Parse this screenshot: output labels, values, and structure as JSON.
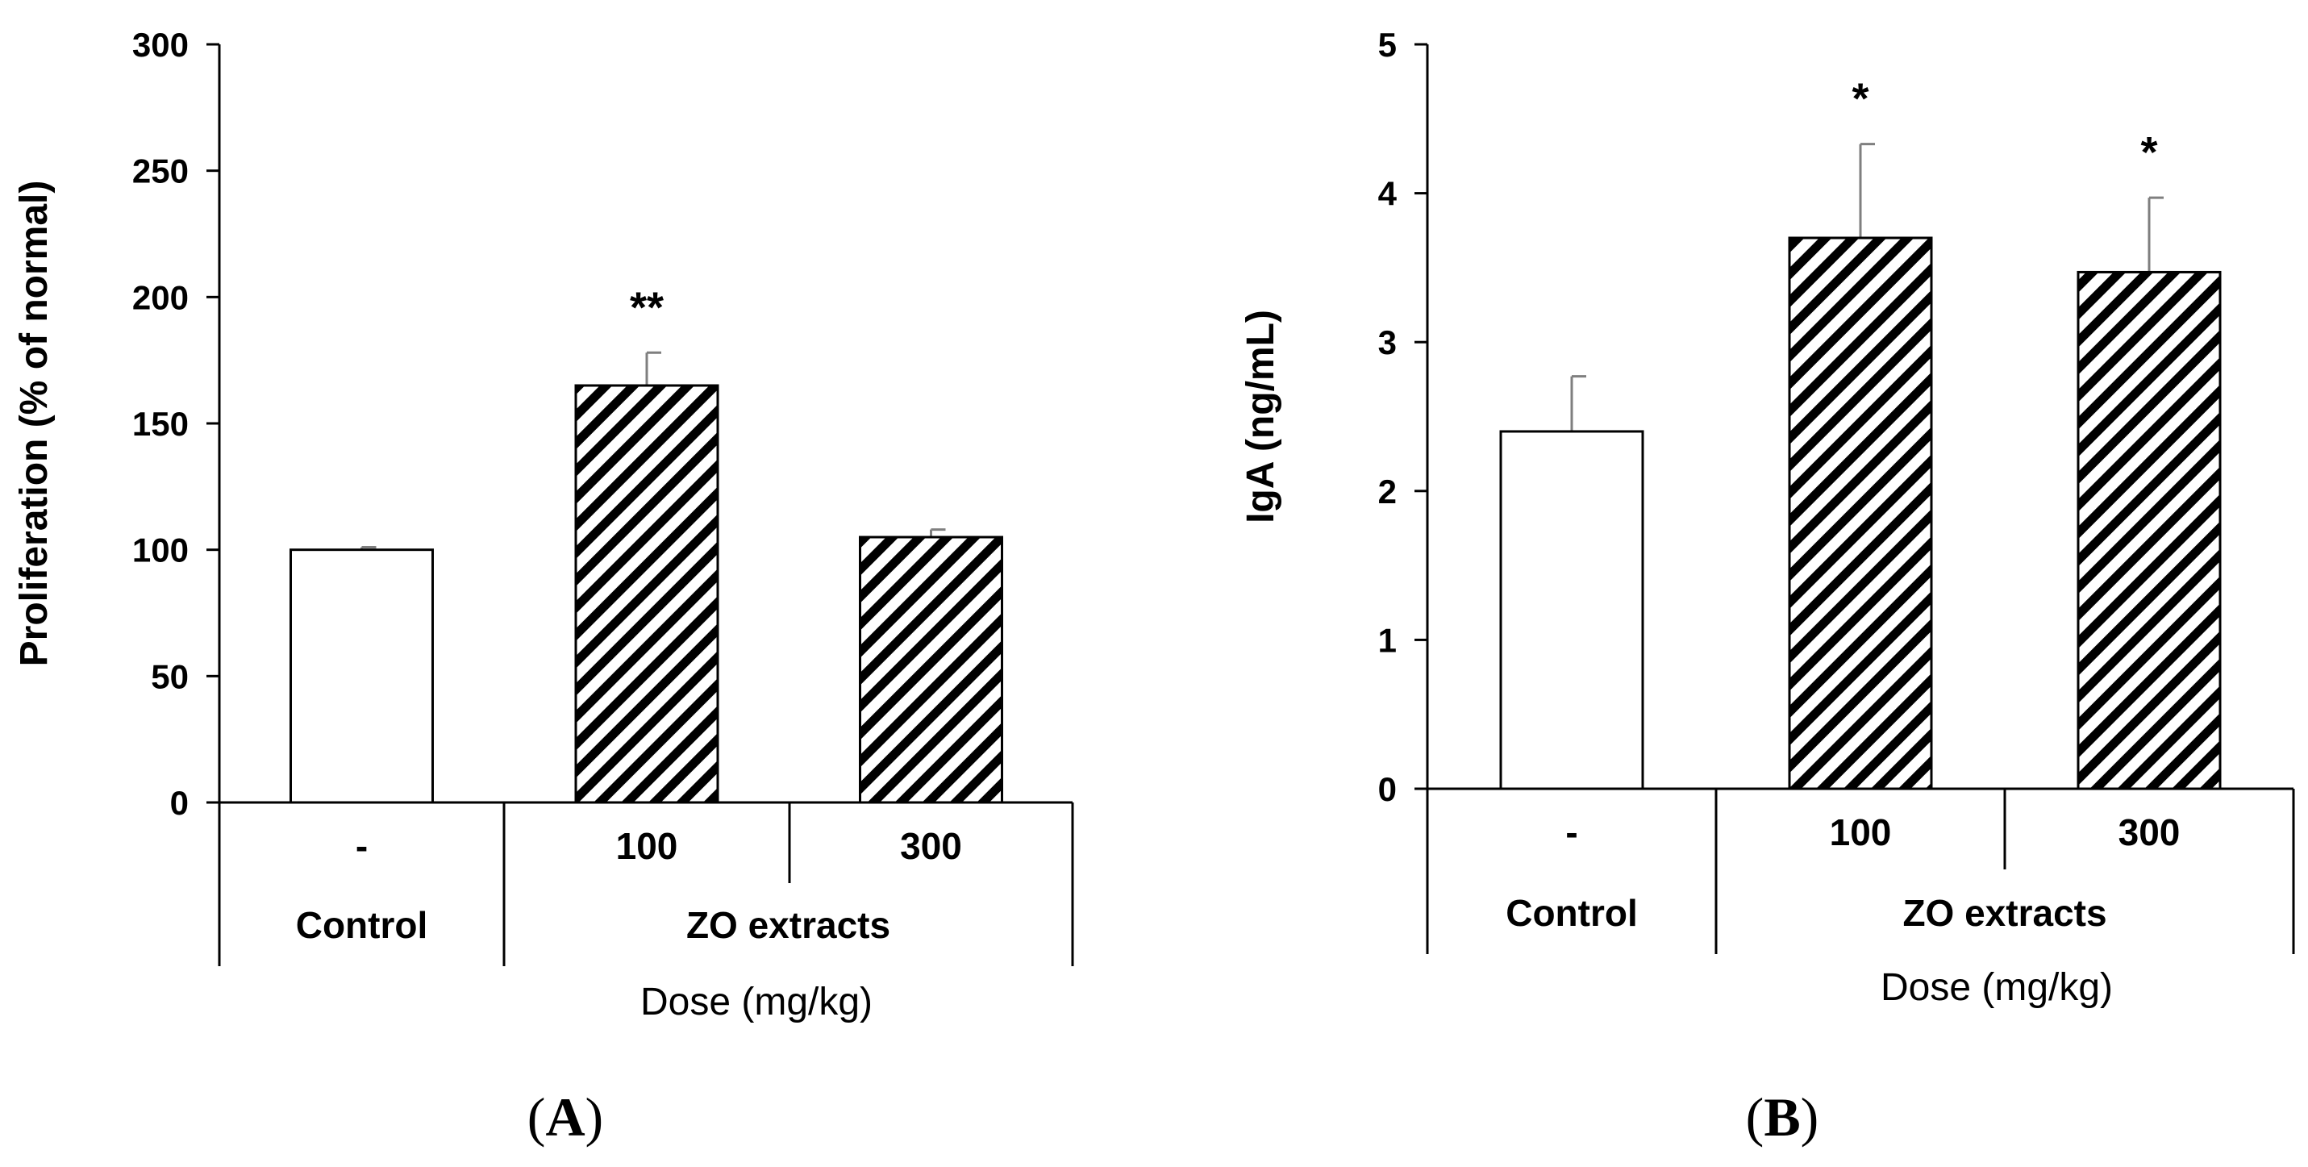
{
  "chart_data": [
    {
      "type": "bar",
      "panel_label": "A",
      "ylabel": "Proliferation (% of normal)",
      "xlabel": "Dose (mg/kg)",
      "ylim": [
        0,
        300
      ],
      "yticks": [
        0,
        50,
        100,
        150,
        200,
        250,
        300
      ],
      "categories": [
        "-",
        "100",
        "300"
      ],
      "groups": [
        {
          "label": "Control",
          "span": [
            0,
            0
          ]
        },
        {
          "label": "ZO extracts",
          "span": [
            1,
            2
          ]
        }
      ],
      "values": [
        100,
        165,
        105
      ],
      "errors": [
        1,
        13,
        3
      ],
      "patterns": [
        "solid",
        "hatch",
        "hatch"
      ],
      "significance": [
        "",
        "**",
        ""
      ]
    },
    {
      "type": "bar",
      "panel_label": "B",
      "ylabel": "IgA (ng/mL)",
      "xlabel": "Dose (mg/kg)",
      "ylim": [
        0,
        5
      ],
      "yticks": [
        0,
        1,
        2,
        3,
        4,
        5
      ],
      "categories": [
        "-",
        "100",
        "300"
      ],
      "groups": [
        {
          "label": "Control",
          "span": [
            0,
            0
          ]
        },
        {
          "label": "ZO extracts",
          "span": [
            1,
            2
          ]
        }
      ],
      "values": [
        2.4,
        3.7,
        3.47
      ],
      "errors": [
        0.37,
        0.63,
        0.5
      ],
      "patterns": [
        "solid",
        "hatch",
        "hatch"
      ],
      "significance": [
        "",
        "*",
        "*"
      ]
    }
  ],
  "colors": {
    "axis": "#000000",
    "bar_fill": "#ffffff",
    "hatch": "#000000",
    "error_bar": "#7f7f7f"
  }
}
